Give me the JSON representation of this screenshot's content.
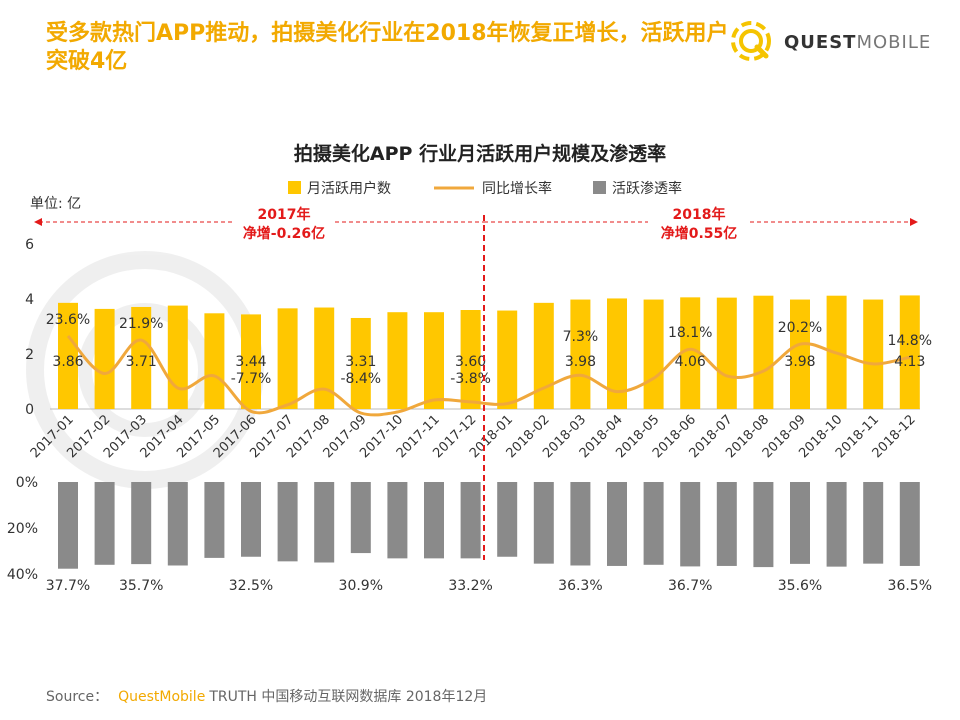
{
  "headline": "受多款热门APP推动，拍摄美化行业在2018年恢复正增长，活跃用户突破4亿",
  "logo": {
    "bold": "QUEST",
    "light": "MOBILE"
  },
  "source": {
    "prefix": "Source：",
    "brand": "QuestMobile",
    "suffix": "TRUTH 中国移动互联网数据库 2018年12月"
  },
  "colors": {
    "bar": "#ffc700",
    "line": "#f0a83c",
    "penetration": "#8a8a8a",
    "annotation": "#e31a1a",
    "headline": "#f2a900"
  },
  "chart_data": {
    "type": "bar",
    "title": "拍摄美化APP 行业月活跃用户规模及渗透率",
    "unit_label": "单位: 亿",
    "legend": [
      "月活跃用户数",
      "同比增长率",
      "活跃渗透率"
    ],
    "legend_position": "top",
    "categories": [
      "2017-01",
      "2017-02",
      "2017-03",
      "2017-04",
      "2017-05",
      "2017-06",
      "2017-07",
      "2017-08",
      "2017-09",
      "2017-10",
      "2017-11",
      "2017-12",
      "2018-01",
      "2018-02",
      "2018-03",
      "2018-04",
      "2018-05",
      "2018-06",
      "2018-07",
      "2018-08",
      "2018-09",
      "2018-10",
      "2018-11",
      "2018-12"
    ],
    "mau": [
      3.86,
      3.64,
      3.71,
      3.76,
      3.48,
      3.44,
      3.66,
      3.69,
      3.31,
      3.52,
      3.52,
      3.6,
      3.58,
      3.86,
      3.98,
      4.02,
      3.98,
      4.06,
      4.05,
      4.12,
      3.98,
      4.12,
      3.98,
      4.13
    ],
    "mau_labels": {
      "0": "3.86",
      "2": "3.71",
      "5": "3.44",
      "8": "3.31",
      "11": "3.60",
      "14": "3.98",
      "17": "4.06",
      "20": "3.98",
      "23": "4.13"
    },
    "yoy_growth": [
      23.6,
      8.0,
      21.9,
      2.0,
      7.0,
      -7.7,
      -5.0,
      1.5,
      -8.4,
      -8.0,
      -3.0,
      -3.8,
      -4.5,
      2.0,
      7.3,
      0.5,
      6.0,
      18.1,
      7.0,
      9.0,
      20.2,
      16.5,
      12.0,
      14.8
    ],
    "yoy_labels": {
      "0": "23.6%",
      "2": "21.9%",
      "5": "-7.7%",
      "8": "-8.4%",
      "11": "-3.8%",
      "14": "7.3%",
      "17": "18.1%",
      "20": "20.2%",
      "23": "14.8%"
    },
    "penetration": [
      37.7,
      36.0,
      35.7,
      36.3,
      33.0,
      32.5,
      34.5,
      35.0,
      30.9,
      33.2,
      33.2,
      33.2,
      32.5,
      35.5,
      36.3,
      36.5,
      36.0,
      36.7,
      36.5,
      37.0,
      35.6,
      36.8,
      35.5,
      36.5
    ],
    "penetration_labels": {
      "0": "37.7%",
      "2": "35.7%",
      "5": "32.5%",
      "8": "30.9%",
      "11": "33.2%",
      "14": "36.3%",
      "17": "36.7%",
      "20": "35.6%",
      "23": "36.5%"
    },
    "y_ticks": [
      "0",
      "2",
      "4",
      "6"
    ],
    "ylim": [
      0,
      6
    ],
    "penetration_ticks": [
      "0%",
      "20%",
      "40%"
    ],
    "penetration_lim": [
      0,
      40
    ],
    "annotations": [
      {
        "year": "2017年",
        "net": "净增-0.26亿"
      },
      {
        "year": "2018年",
        "net": "净增0.55亿"
      }
    ]
  }
}
